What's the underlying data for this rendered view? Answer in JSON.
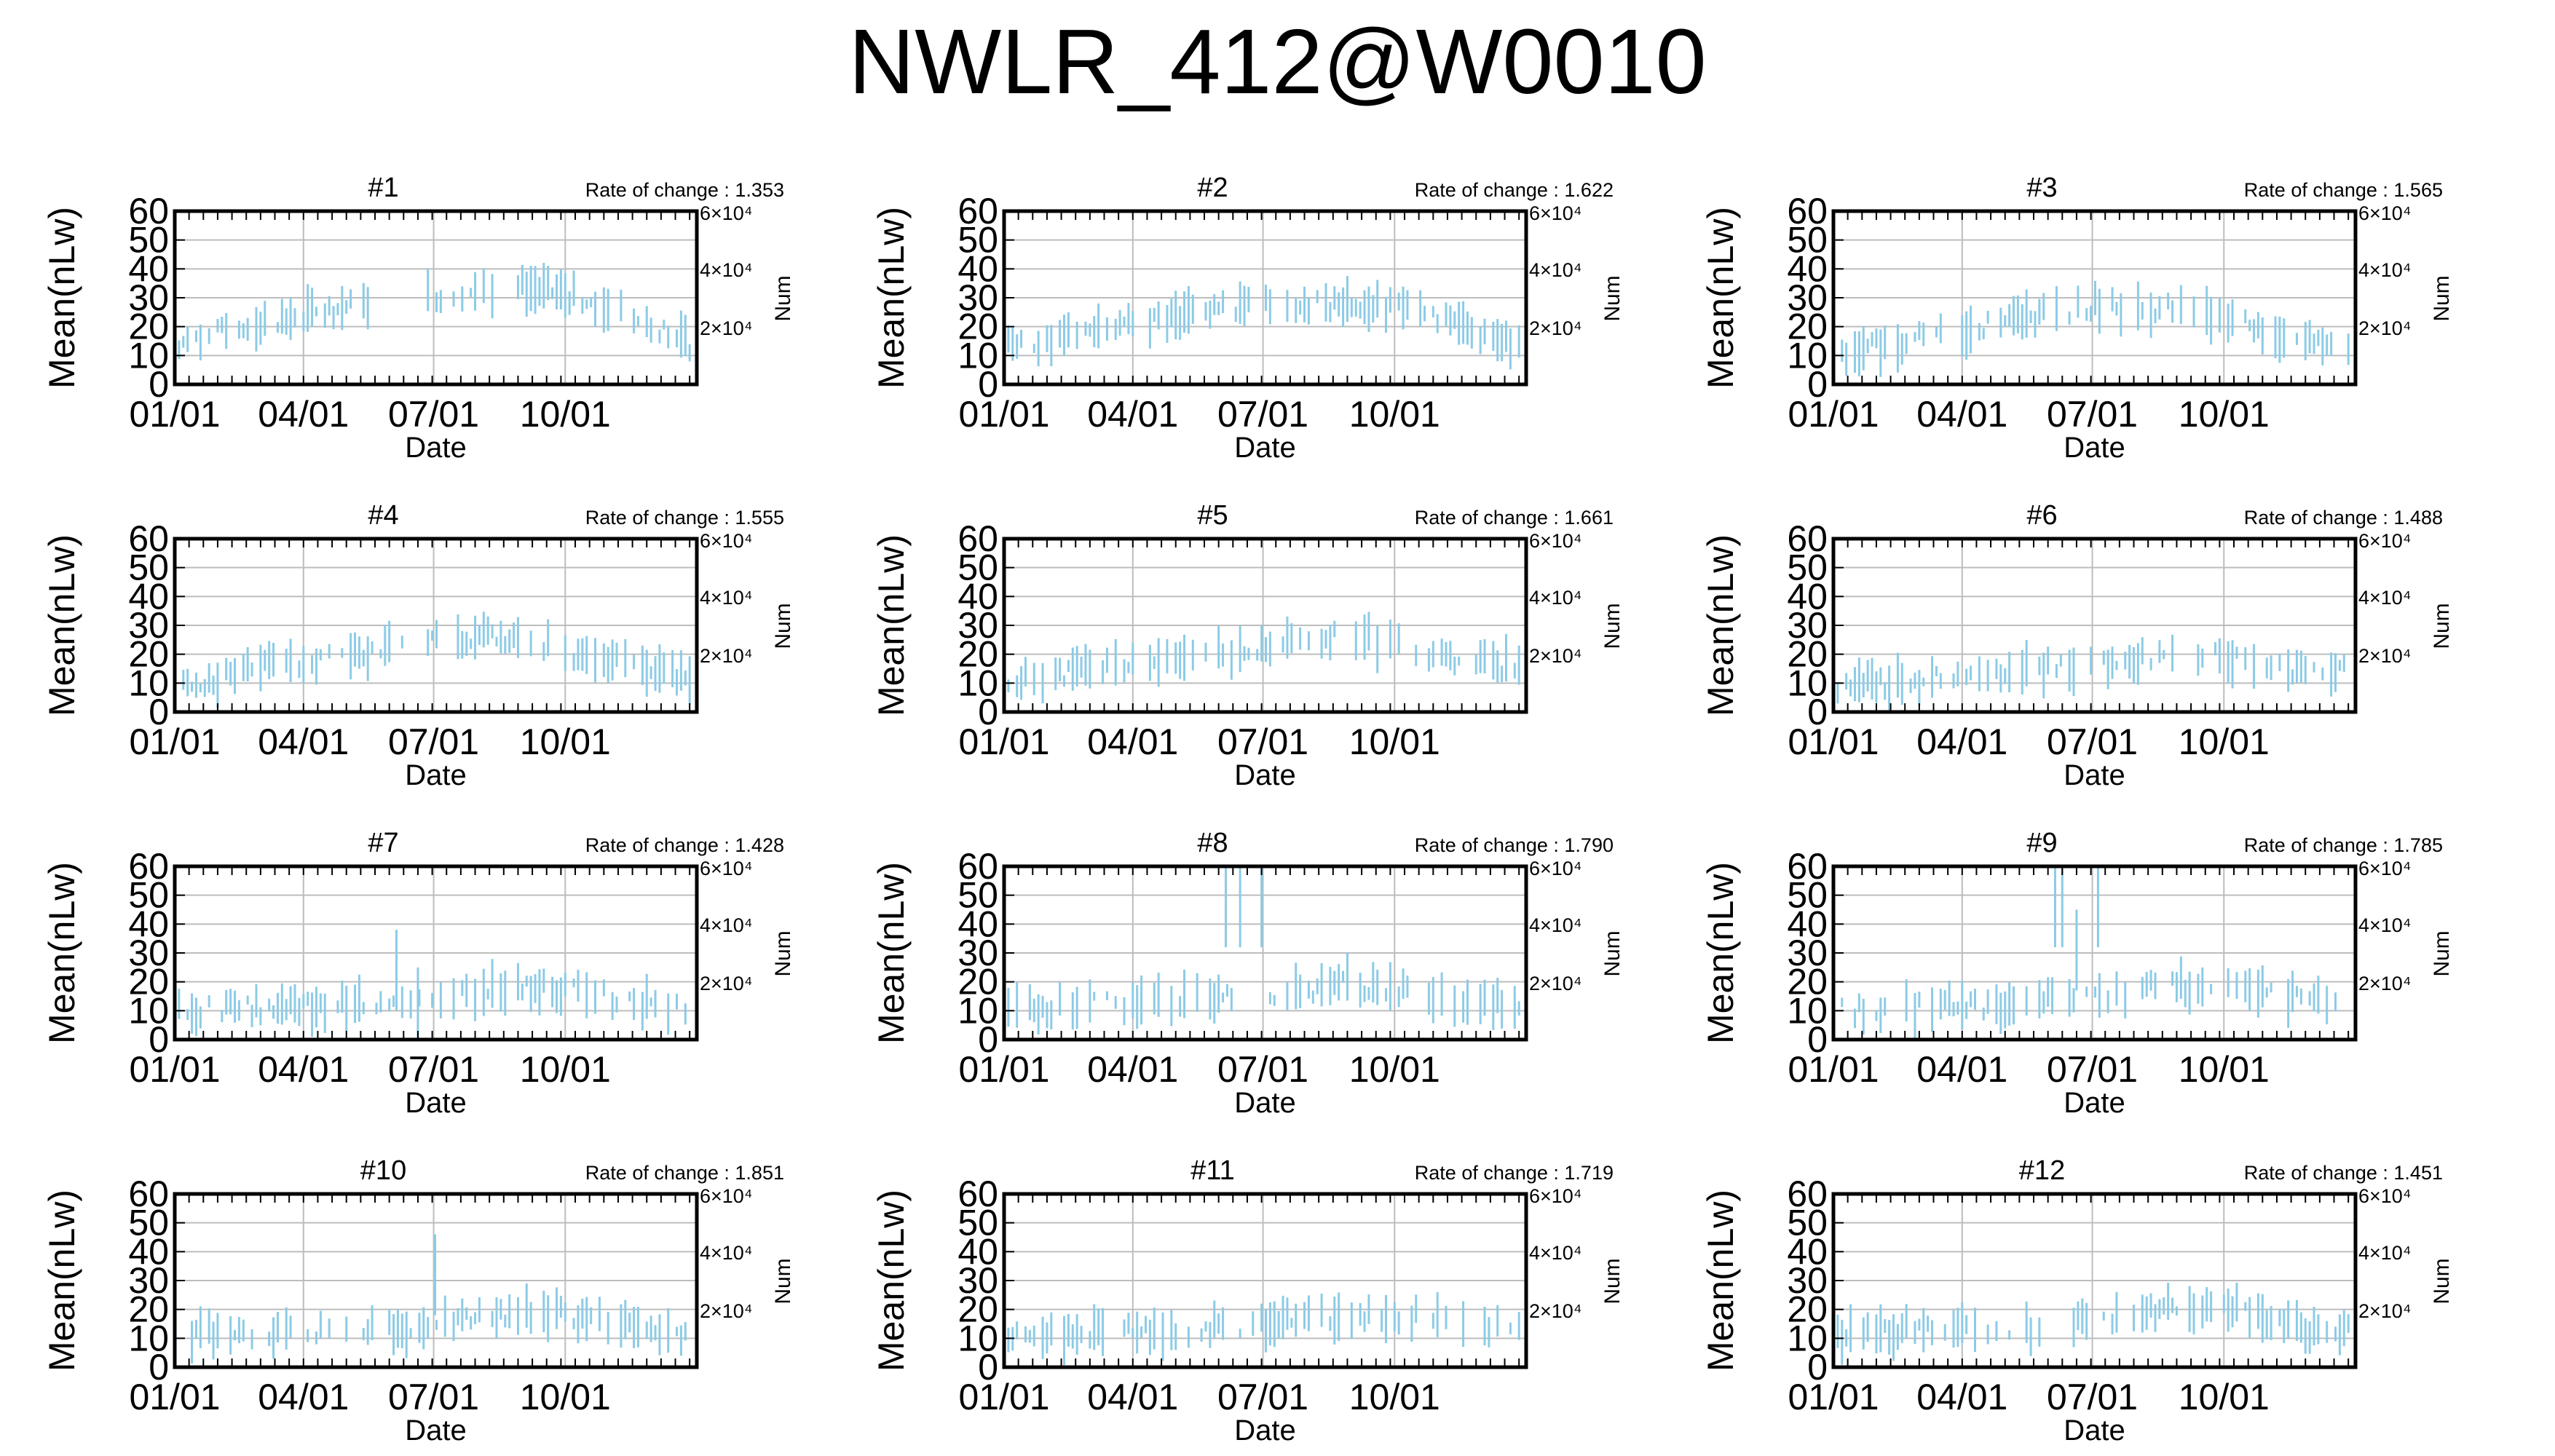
{
  "title": "NWLR_412@W0010",
  "colors": {
    "bar": "#8ccbe6",
    "grid": "#bdbdbd",
    "frame": "#000000"
  },
  "chart_data": {
    "type": "errorbar-timeseries-grid",
    "ylabel": "Mean(nLw)",
    "xlabel": "Date",
    "ylim": [
      0,
      60
    ],
    "yticks": [
      "0",
      "10",
      "20",
      "30",
      "40",
      "50",
      "60"
    ],
    "xticks": [
      "01/01",
      "04/01",
      "07/01",
      "10/01"
    ],
    "right_axis": {
      "label": "Num",
      "ticks": [
        "2×10⁴",
        "4×10⁴",
        "6×10⁴"
      ]
    },
    "rate_prefix": "Rate of change : ",
    "grid": true,
    "panels": [
      {
        "title": "#1",
        "rate": "1.353",
        "knots": [
          [
            0,
            14
          ],
          [
            60,
            21
          ],
          [
            120,
            27
          ],
          [
            180,
            31
          ],
          [
            240,
            34
          ],
          [
            275,
            31
          ],
          [
            330,
            22
          ],
          [
            365,
            12
          ]
        ],
        "gap": [
          150,
          175
        ],
        "spikes": []
      },
      {
        "title": "#2",
        "rate": "1.622",
        "knots": [
          [
            0,
            13
          ],
          [
            60,
            18
          ],
          [
            120,
            23
          ],
          [
            180,
            28
          ],
          [
            240,
            28
          ],
          [
            280,
            26
          ],
          [
            330,
            18
          ],
          [
            365,
            12
          ]
        ],
        "gap": null,
        "spikes": []
      },
      {
        "title": "#3",
        "rate": "1.565",
        "knots": [
          [
            0,
            10
          ],
          [
            60,
            16
          ],
          [
            120,
            22
          ],
          [
            180,
            27
          ],
          [
            240,
            26
          ],
          [
            280,
            22
          ],
          [
            330,
            15
          ],
          [
            365,
            10
          ]
        ],
        "gap": null,
        "spikes": []
      },
      {
        "title": "#4",
        "rate": "1.555",
        "knots": [
          [
            0,
            8
          ],
          [
            60,
            16
          ],
          [
            120,
            20
          ],
          [
            180,
            25
          ],
          [
            240,
            26
          ],
          [
            280,
            20
          ],
          [
            330,
            15
          ],
          [
            365,
            12
          ]
        ],
        "gap": null,
        "spikes": []
      },
      {
        "title": "#5",
        "rate": "1.661",
        "knots": [
          [
            0,
            10
          ],
          [
            60,
            15
          ],
          [
            120,
            18
          ],
          [
            180,
            22
          ],
          [
            240,
            27
          ],
          [
            280,
            22
          ],
          [
            330,
            17
          ],
          [
            365,
            15
          ]
        ],
        "gap": null,
        "spikes": []
      },
      {
        "title": "#6",
        "rate": "1.488",
        "knots": [
          [
            0,
            9
          ],
          [
            60,
            11
          ],
          [
            120,
            14
          ],
          [
            180,
            16
          ],
          [
            240,
            21
          ],
          [
            280,
            19
          ],
          [
            330,
            14
          ],
          [
            365,
            14
          ]
        ],
        "gap": null,
        "spikes": []
      },
      {
        "title": "#7",
        "rate": "1.428",
        "knots": [
          [
            0,
            10
          ],
          [
            60,
            11
          ],
          [
            120,
            12
          ],
          [
            180,
            14
          ],
          [
            240,
            19
          ],
          [
            280,
            17
          ],
          [
            330,
            12
          ],
          [
            365,
            10
          ]
        ],
        "gap": null,
        "spikes": [
          [
            155,
            38
          ],
          [
            170,
            25
          ]
        ]
      },
      {
        "title": "#8",
        "rate": "1.790",
        "knots": [
          [
            0,
            10
          ],
          [
            60,
            12
          ],
          [
            120,
            13
          ],
          [
            180,
            15
          ],
          [
            240,
            19
          ],
          [
            280,
            17
          ],
          [
            330,
            13
          ],
          [
            365,
            12
          ]
        ],
        "gap": null,
        "spikes": [
          [
            155,
            60
          ],
          [
            165,
            60
          ],
          [
            180,
            60
          ]
        ]
      },
      {
        "title": "#9",
        "rate": "1.785",
        "knots": [
          [
            0,
            10
          ],
          [
            60,
            11
          ],
          [
            120,
            12
          ],
          [
            180,
            15
          ],
          [
            240,
            19
          ],
          [
            280,
            17
          ],
          [
            330,
            14
          ],
          [
            365,
            12
          ]
        ],
        "gap": [
          205,
          215
        ],
        "spikes": [
          [
            155,
            60
          ],
          [
            160,
            60
          ],
          [
            170,
            45
          ],
          [
            185,
            60
          ]
        ]
      },
      {
        "title": "#10",
        "rate": "1.851",
        "knots": [
          [
            0,
            11
          ],
          [
            60,
            12
          ],
          [
            120,
            12
          ],
          [
            180,
            15
          ],
          [
            240,
            19
          ],
          [
            280,
            18
          ],
          [
            330,
            12
          ],
          [
            365,
            10
          ]
        ],
        "gap": null,
        "spikes": [
          [
            182,
            46
          ]
        ]
      },
      {
        "title": "#11",
        "rate": "1.719",
        "knots": [
          [
            0,
            12
          ],
          [
            60,
            12
          ],
          [
            120,
            13
          ],
          [
            180,
            15
          ],
          [
            240,
            18
          ],
          [
            280,
            18
          ],
          [
            330,
            14
          ],
          [
            365,
            13
          ]
        ],
        "gap": null,
        "spikes": []
      },
      {
        "title": "#12",
        "rate": "1.451",
        "knots": [
          [
            0,
            10
          ],
          [
            60,
            14
          ],
          [
            120,
            12
          ],
          [
            180,
            16
          ],
          [
            240,
            21
          ],
          [
            280,
            20
          ],
          [
            330,
            13
          ],
          [
            365,
            13
          ]
        ],
        "gap": [
          150,
          165
        ],
        "spikes": []
      }
    ]
  }
}
